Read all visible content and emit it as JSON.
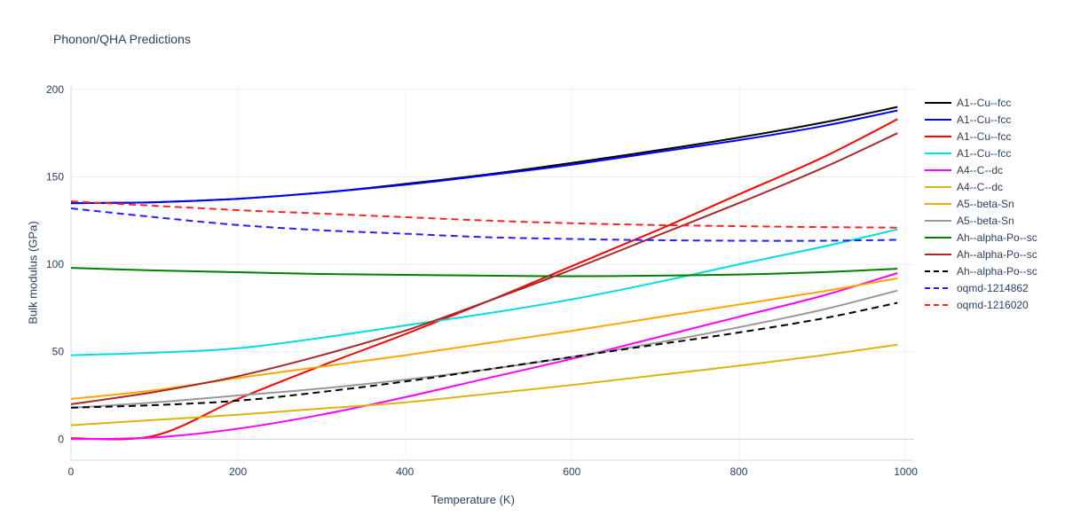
{
  "page": {
    "title": "Phonon/QHA Predictions"
  },
  "chart_data": {
    "type": "line",
    "title": "Phonon/QHA Predictions",
    "xlabel": "Temperature (K)",
    "ylabel": "Bulk modulus (GPa)",
    "xlim": [
      0,
      1010
    ],
    "ylim": [
      -12,
      203
    ],
    "xticks": [
      0,
      200,
      400,
      600,
      800,
      1000
    ],
    "yticks": [
      0,
      50,
      100,
      150,
      200
    ],
    "grid": true,
    "legend_position": "right",
    "colors": {
      "text": "#2a3f5f",
      "grid": "#ececf2",
      "zero_line": "#d4d4dc",
      "axis_line": "#d8d8e0"
    },
    "x": [
      0,
      100,
      200,
      300,
      400,
      500,
      600,
      700,
      800,
      900,
      990
    ],
    "series": [
      {
        "name": "A1--Cu--fcc",
        "color": "#000000",
        "dash": "solid",
        "values": [
          135,
          135.5,
          137.5,
          141,
          146,
          151.5,
          158,
          165,
          172.5,
          181,
          190
        ]
      },
      {
        "name": "A1--Cu--fcc",
        "color": "#0000ff",
        "dash": "solid",
        "values": [
          135,
          135.5,
          137.5,
          141,
          145.5,
          151,
          157,
          164,
          171,
          179,
          188
        ]
      },
      {
        "name": "A1--Cu--fcc",
        "color": "#ff0000",
        "dash": "solid",
        "values": [
          0.5,
          2,
          23,
          42,
          60,
          79,
          99,
          119,
          140,
          161,
          183
        ]
      },
      {
        "name": "A1--Cu--fcc",
        "color": "#00dde0",
        "dash": "solid",
        "values": [
          48,
          49.5,
          52,
          58,
          65,
          72,
          80,
          89.5,
          100,
          110,
          120
        ]
      },
      {
        "name": "A4--C--dc",
        "color": "#ff00ff",
        "dash": "solid",
        "values": [
          0,
          1,
          6,
          14,
          24,
          35,
          46,
          58,
          70,
          82,
          95
        ]
      },
      {
        "name": "A4--C--dc",
        "color": "#dbb40c",
        "dash": "solid",
        "values": [
          8,
          11,
          14,
          17.5,
          21,
          26,
          31,
          36.5,
          42,
          48,
          54
        ]
      },
      {
        "name": "A5--beta-Sn",
        "color": "#ffa500",
        "dash": "solid",
        "values": [
          23,
          28,
          35,
          41.5,
          48,
          55,
          62,
          69.5,
          77,
          84.5,
          92
        ]
      },
      {
        "name": "A5--beta-Sn",
        "color": "#999999",
        "dash": "solid",
        "values": [
          18,
          21,
          25,
          29,
          34,
          40,
          47,
          55,
          64,
          74,
          85
        ]
      },
      {
        "name": "Ah--alpha-Po--sc",
        "color": "#007f00",
        "dash": "solid",
        "values": [
          98,
          96.5,
          95.5,
          94.5,
          94,
          93.5,
          93.2,
          93.5,
          94.2,
          95.5,
          97.5
        ]
      },
      {
        "name": "Ah--alpha-Po--sc",
        "color": "#a52a2a",
        "dash": "solid",
        "values": [
          20,
          27,
          36,
          48,
          62,
          79,
          97,
          116,
          135,
          155,
          175
        ]
      },
      {
        "name": "Ah--alpha-Po--sc",
        "color": "#000000",
        "dash": "dashed",
        "values": [
          18,
          19.5,
          22,
          27,
          33,
          40,
          47,
          54,
          61,
          69,
          78
        ]
      },
      {
        "name": "oqmd-1214862",
        "color": "#2222ff",
        "dash": "dashed",
        "values": [
          132,
          127,
          122.5,
          119.5,
          117.5,
          115.5,
          114.5,
          113.8,
          113.5,
          113.5,
          114
        ]
      },
      {
        "name": "oqmd-1216020",
        "color": "#ff2222",
        "dash": "dashed",
        "values": [
          136,
          133.5,
          131,
          129,
          127,
          125,
          123.5,
          122.5,
          121.8,
          121.3,
          121
        ]
      }
    ]
  }
}
